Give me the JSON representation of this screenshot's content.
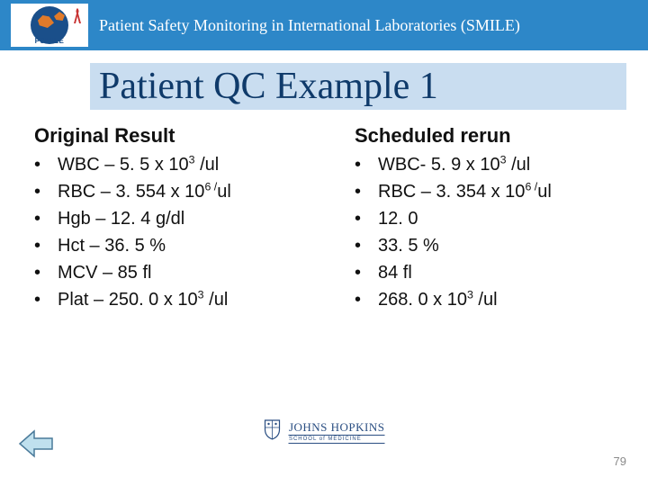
{
  "header": {
    "logo_label": "PSMILE",
    "title": "Patient Safety Monitoring in International Laboratories (SMILE)"
  },
  "slide_title": "Patient QC  Example 1",
  "columns": {
    "left": {
      "heading": "Original Result",
      "items": [
        "WBC – 5. 5 x 10<sup>3</sup> /ul",
        "RBC – 3. 554 x 10<sup>6 /</sup>ul",
        "Hgb – 12. 4 g/dl",
        "Hct – 36. 5 %",
        "MCV – 85 fl",
        "Plat – 250. 0 x 10<sup>3</sup> /ul"
      ]
    },
    "right": {
      "heading": "Scheduled rerun",
      "items": [
        "WBC- 5. 9 x 10<sup>3</sup> /ul",
        "RBC – 3. 354 x 10<sup>6 /</sup>ul",
        "12. 0",
        "33. 5 %",
        "84 fl",
        "268. 0 x 10<sup>3</sup> /ul"
      ]
    }
  },
  "footer": {
    "logo_main": "JOHNS HOPKINS",
    "logo_sub": "SCHOOL of MEDICINE",
    "page_number": "79"
  },
  "colors": {
    "header_bg": "#2d87c8",
    "title_bg": "#c9ddf0",
    "title_fg": "#0f3a6a",
    "text": "#111111",
    "footer_logo": "#2a4e82",
    "page_num": "#8a8a8a"
  }
}
